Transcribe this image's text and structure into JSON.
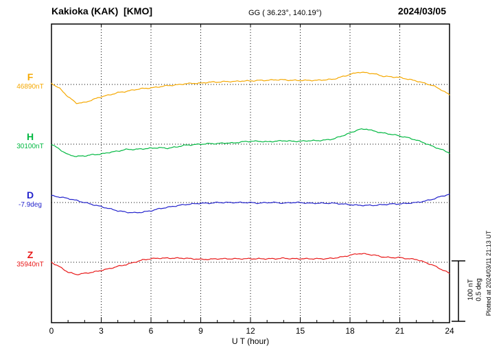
{
  "header": {
    "title": "Kakioka (KAK)  [KMO]",
    "coords": "GG ( 36.23°, 140.19°)",
    "date": "2024/03/05"
  },
  "side": {
    "scale_nt": "100 nT",
    "scale_deg": "0.5 deg",
    "plotted": "Plotted at 2024/03/11 21:13 UT"
  },
  "axis": {
    "xlabel": "U T (hour)",
    "ticks": [
      0,
      3,
      6,
      9,
      12,
      15,
      18,
      21,
      24
    ]
  },
  "left_labels": [
    {
      "name": "F",
      "value": "46890nT"
    },
    {
      "name": "H",
      "value": "30100nT"
    },
    {
      "name": "D",
      "value": "-7.9deg"
    },
    {
      "name": "Z",
      "value": "35940nT"
    }
  ],
  "colors": {
    "F": "#f5a800",
    "H": "#00b840",
    "D": "#2222cc",
    "Z": "#e81818",
    "frame": "#000000",
    "background": "#ffffff"
  },
  "chart_data": {
    "type": "line",
    "title": "Kakioka (KAK) [KMO] magnetogram, 2024/03/05",
    "xlabel": "U T (hour)",
    "xlim": [
      0,
      24
    ],
    "x_ticks": [
      0,
      3,
      6,
      9,
      12,
      15,
      18,
      21,
      24
    ],
    "grid": {
      "vertical_dotted_every_hours": 3,
      "horizontal_dotted": "one baseline per series at its reference value"
    },
    "scale_bar": {
      "nT_per_division": 100,
      "deg_per_division": 0.5
    },
    "x": [
      0,
      0.5,
      1,
      1.5,
      2,
      2.5,
      3,
      3.5,
      4,
      4.5,
      5,
      5.5,
      6,
      6.5,
      7,
      7.5,
      8,
      8.5,
      9,
      9.5,
      10,
      10.5,
      11,
      11.5,
      12,
      12.5,
      13,
      13.5,
      14,
      14.5,
      15,
      15.5,
      16,
      16.5,
      17,
      17.5,
      18,
      18.5,
      19,
      19.5,
      20,
      20.5,
      21,
      21.5,
      22,
      22.5,
      23,
      23.5,
      24
    ],
    "series": [
      {
        "name": "F",
        "unit": "nT",
        "baseline": 46890,
        "values": [
          46892,
          46883,
          46869,
          46858,
          46859,
          46864,
          46869,
          46872,
          46876,
          46878,
          46881,
          46883,
          46884,
          46886,
          46888,
          46889,
          46891,
          46892,
          46892,
          46894,
          46894,
          46895,
          46895,
          46896,
          46896,
          46897,
          46897,
          46898,
          46898,
          46897,
          46897,
          46897,
          46897,
          46898,
          46899,
          46903,
          46907,
          46911,
          46910,
          46908,
          46904,
          46903,
          46902,
          46899,
          46896,
          46892,
          46888,
          46881,
          46872
        ]
      },
      {
        "name": "H",
        "unit": "nT",
        "baseline": 30100,
        "values": [
          30100,
          30091,
          30082,
          30079,
          30080,
          30082,
          30083,
          30086,
          30088,
          30091,
          30091,
          30092,
          30093,
          30094,
          30093,
          30095,
          30098,
          30099,
          30100,
          30101,
          30101,
          30102,
          30102,
          30104,
          30105,
          30105,
          30104,
          30105,
          30106,
          30105,
          30105,
          30106,
          30106,
          30107,
          30109,
          30114,
          30119,
          30125,
          30126,
          30122,
          30119,
          30117,
          30114,
          30111,
          30107,
          30102,
          30096,
          30091,
          30085
        ]
      },
      {
        "name": "D",
        "unit": "deg",
        "baseline": -7.9,
        "values": [
          -7.841,
          -7.853,
          -7.865,
          -7.882,
          -7.9,
          -7.918,
          -7.935,
          -7.953,
          -7.971,
          -7.982,
          -7.988,
          -7.982,
          -7.971,
          -7.953,
          -7.941,
          -7.929,
          -7.918,
          -7.912,
          -7.906,
          -7.906,
          -7.9,
          -7.9,
          -7.9,
          -7.9,
          -7.9,
          -7.906,
          -7.9,
          -7.9,
          -7.906,
          -7.9,
          -7.9,
          -7.906,
          -7.906,
          -7.906,
          -7.906,
          -7.912,
          -7.918,
          -7.924,
          -7.924,
          -7.924,
          -7.918,
          -7.912,
          -7.912,
          -7.906,
          -7.9,
          -7.888,
          -7.871,
          -7.847,
          -7.829
        ]
      },
      {
        "name": "Z",
        "unit": "nT",
        "baseline": 35940,
        "values": [
          35940,
          35932,
          35923,
          35919,
          35921,
          35923,
          35926,
          35929,
          35933,
          35936,
          35940,
          35944,
          35946,
          35947,
          35947,
          35947,
          35947,
          35946,
          35945,
          35945,
          35946,
          35946,
          35946,
          35946,
          35946,
          35946,
          35946,
          35946,
          35947,
          35946,
          35946,
          35946,
          35946,
          35946,
          35947,
          35949,
          35952,
          35955,
          35954,
          35952,
          35949,
          35948,
          35948,
          35946,
          35945,
          35940,
          35935,
          35928,
          35921
        ]
      }
    ]
  }
}
